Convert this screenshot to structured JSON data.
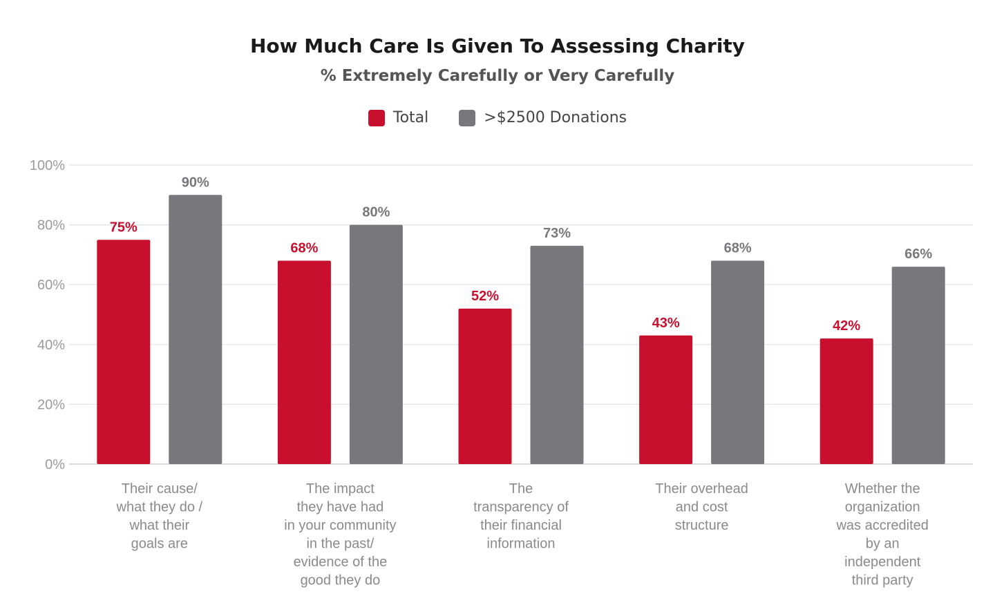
{
  "chart_data": {
    "type": "bar",
    "title": "How Much Care Is Given To Assessing Charity",
    "subtitle": "% Extremely Carefully or Very Carefully",
    "categories": [
      "Their cause/\nwhat they do /\nwhat their\ngoals are",
      "The impact\nthey have had\nin your community\nin the past/\nevidence of the\ngood they do",
      "The\ntransparency of\ntheir financial\ninformation",
      "Their overhead\nand cost\nstructure",
      "Whether the\norganization\nwas accredited\nby an\nindependent\nthird party"
    ],
    "series": [
      {
        "name": "Total",
        "values": [
          75,
          68,
          52,
          43,
          42
        ],
        "labels": [
          "75%",
          "68%",
          "52%",
          "43%",
          "42%"
        ],
        "color": "#c8102e"
      },
      {
        "name": ">$2500 Donations",
        "values": [
          90,
          80,
          73,
          68,
          66
        ],
        "labels": [
          "90%",
          "80%",
          "73%",
          "68%",
          "66%"
        ],
        "color": "#76787b"
      }
    ],
    "y_ticks": [
      {
        "value": 0,
        "label": "0%"
      },
      {
        "value": 20,
        "label": "20%"
      },
      {
        "value": 40,
        "label": "40%"
      },
      {
        "value": 60,
        "label": "60%"
      },
      {
        "value": 80,
        "label": "80%"
      },
      {
        "value": 100,
        "label": "100%"
      }
    ],
    "ylim": [
      0,
      100
    ],
    "grid": true,
    "legend": "top-center",
    "xlabel": "",
    "ylabel": ""
  }
}
